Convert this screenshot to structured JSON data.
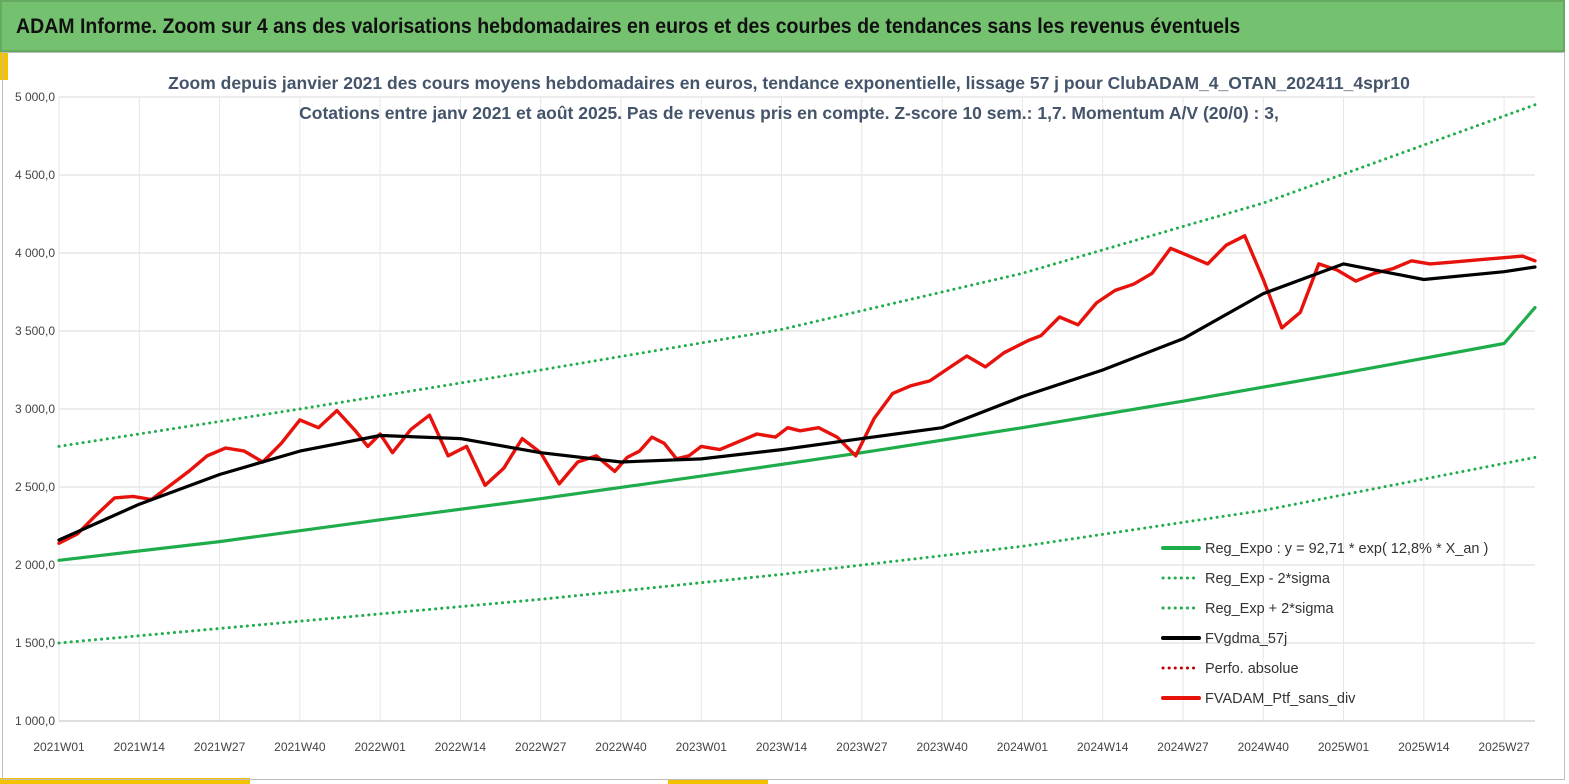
{
  "banner": {
    "title": "ADAM Informe. Zoom sur 4 ans des valorisations hebdomadaires en euros et des courbes de tendances sans les revenus éventuels"
  },
  "colors": {
    "banner": "#74c16f",
    "accent": "#f2c200",
    "trend": "#1fad4b",
    "smooth": "#000000",
    "portfolio": "#e8120c",
    "perf": "#c00000"
  },
  "chart_data": {
    "type": "line",
    "title": "Zoom depuis janvier 2021 des cours moyens hebdomadaires  en euros, tendance exponentielle, lissage 57 j pour ClubADAM_4_OTAN_202411_4spr10",
    "subtitle": "Cotations  entre janv 2021 et août 2025. Pas de revenus pris en compte. Z-score 10 sem.: 1,7. Momentum  A/V (20/0) : 3,",
    "ylim": [
      1000,
      5000
    ],
    "yticks": [
      1000,
      1500,
      2000,
      2500,
      3000,
      3500,
      4000,
      4500,
      5000
    ],
    "ytick_labels": [
      "1 000,0",
      "1 500,0",
      "2 000,0",
      "2 500,0",
      "3 000,0",
      "3 500,0",
      "4 000,0",
      "4 500,0",
      "5 000,0"
    ],
    "x_categories": [
      "2021W01",
      "2021W14",
      "2021W27",
      "2021W40",
      "2022W01",
      "2022W14",
      "2022W27",
      "2022W40",
      "2023W01",
      "2023W14",
      "2023W27",
      "2023W40",
      "2024W01",
      "2024W14",
      "2024W27",
      "2024W40",
      "2025W01",
      "2025W14",
      "2025W27"
    ],
    "x_weeks_range": [
      0,
      239
    ],
    "grid": true,
    "legend_position": "bottom-right",
    "series": [
      {
        "name": "Reg_Expo : y = 92,71 * exp( 12,8% *  X_an )",
        "style": "solid",
        "color": "#1fad4b",
        "x": [
          0,
          26,
          52,
          78,
          104,
          130,
          156,
          182,
          208,
          234,
          239
        ],
        "y": [
          2030,
          2150,
          2290,
          2425,
          2570,
          2720,
          2880,
          3050,
          3230,
          3420,
          3650
        ]
      },
      {
        "name": "Reg_Exp - 2*sigma",
        "style": "dotted",
        "color": "#1fad4b",
        "x": [
          0,
          39,
          78,
          117,
          156,
          195,
          239
        ],
        "y": [
          1500,
          1640,
          1780,
          1940,
          2120,
          2350,
          2690
        ]
      },
      {
        "name": "Reg_Exp + 2*sigma",
        "style": "dotted",
        "color": "#1fad4b",
        "x": [
          0,
          39,
          78,
          117,
          156,
          195,
          239
        ],
        "y": [
          2760,
          3000,
          3250,
          3510,
          3870,
          4320,
          4950
        ]
      },
      {
        "name": "FVgdma_57j",
        "style": "solid",
        "color": "#000000",
        "x": [
          0,
          13,
          26,
          39,
          52,
          65,
          78,
          91,
          104,
          117,
          130,
          143,
          156,
          169,
          182,
          195,
          208,
          221,
          234,
          239
        ],
        "y": [
          2160,
          2390,
          2580,
          2730,
          2830,
          2810,
          2720,
          2660,
          2680,
          2740,
          2810,
          2880,
          3080,
          3250,
          3450,
          3740,
          3930,
          3830,
          3880,
          3910
        ]
      },
      {
        "name": "Perfo. absolue",
        "style": "dotted",
        "color": "#c00000",
        "x": [],
        "y": []
      },
      {
        "name": "FVADAM_Ptf_sans_div",
        "style": "solid",
        "color": "#e8120c",
        "x": [
          0,
          3,
          6,
          9,
          12,
          15,
          18,
          21,
          24,
          27,
          30,
          33,
          36,
          39,
          42,
          45,
          48,
          50,
          52,
          54,
          57,
          60,
          63,
          66,
          69,
          72,
          75,
          78,
          81,
          84,
          87,
          90,
          92,
          94,
          96,
          98,
          100,
          102,
          104,
          107,
          110,
          113,
          116,
          118,
          120,
          123,
          126,
          129,
          132,
          135,
          138,
          141,
          144,
          147,
          150,
          153,
          155,
          157,
          159,
          162,
          165,
          168,
          171,
          174,
          177,
          180,
          183,
          186,
          189,
          192,
          195,
          198,
          201,
          204,
          207,
          210,
          213,
          216,
          219,
          222,
          225,
          228,
          231,
          234,
          237,
          239
        ],
        "y": [
          2140,
          2200,
          2320,
          2430,
          2440,
          2420,
          2510,
          2600,
          2700,
          2750,
          2730,
          2660,
          2780,
          2930,
          2880,
          2990,
          2860,
          2760,
          2840,
          2720,
          2870,
          2960,
          2700,
          2760,
          2510,
          2620,
          2810,
          2720,
          2520,
          2660,
          2700,
          2600,
          2690,
          2730,
          2820,
          2780,
          2680,
          2700,
          2760,
          2740,
          2790,
          2840,
          2820,
          2880,
          2860,
          2880,
          2820,
          2700,
          2940,
          3100,
          3150,
          3180,
          3260,
          3340,
          3270,
          3360,
          3400,
          3440,
          3470,
          3590,
          3540,
          3680,
          3760,
          3800,
          3870,
          4030,
          3980,
          3930,
          4050,
          4110,
          3830,
          3520,
          3620,
          3930,
          3890,
          3820,
          3870,
          3900,
          3950,
          3930,
          3940,
          3950,
          3960,
          3970,
          3980,
          3950
        ]
      }
    ]
  }
}
